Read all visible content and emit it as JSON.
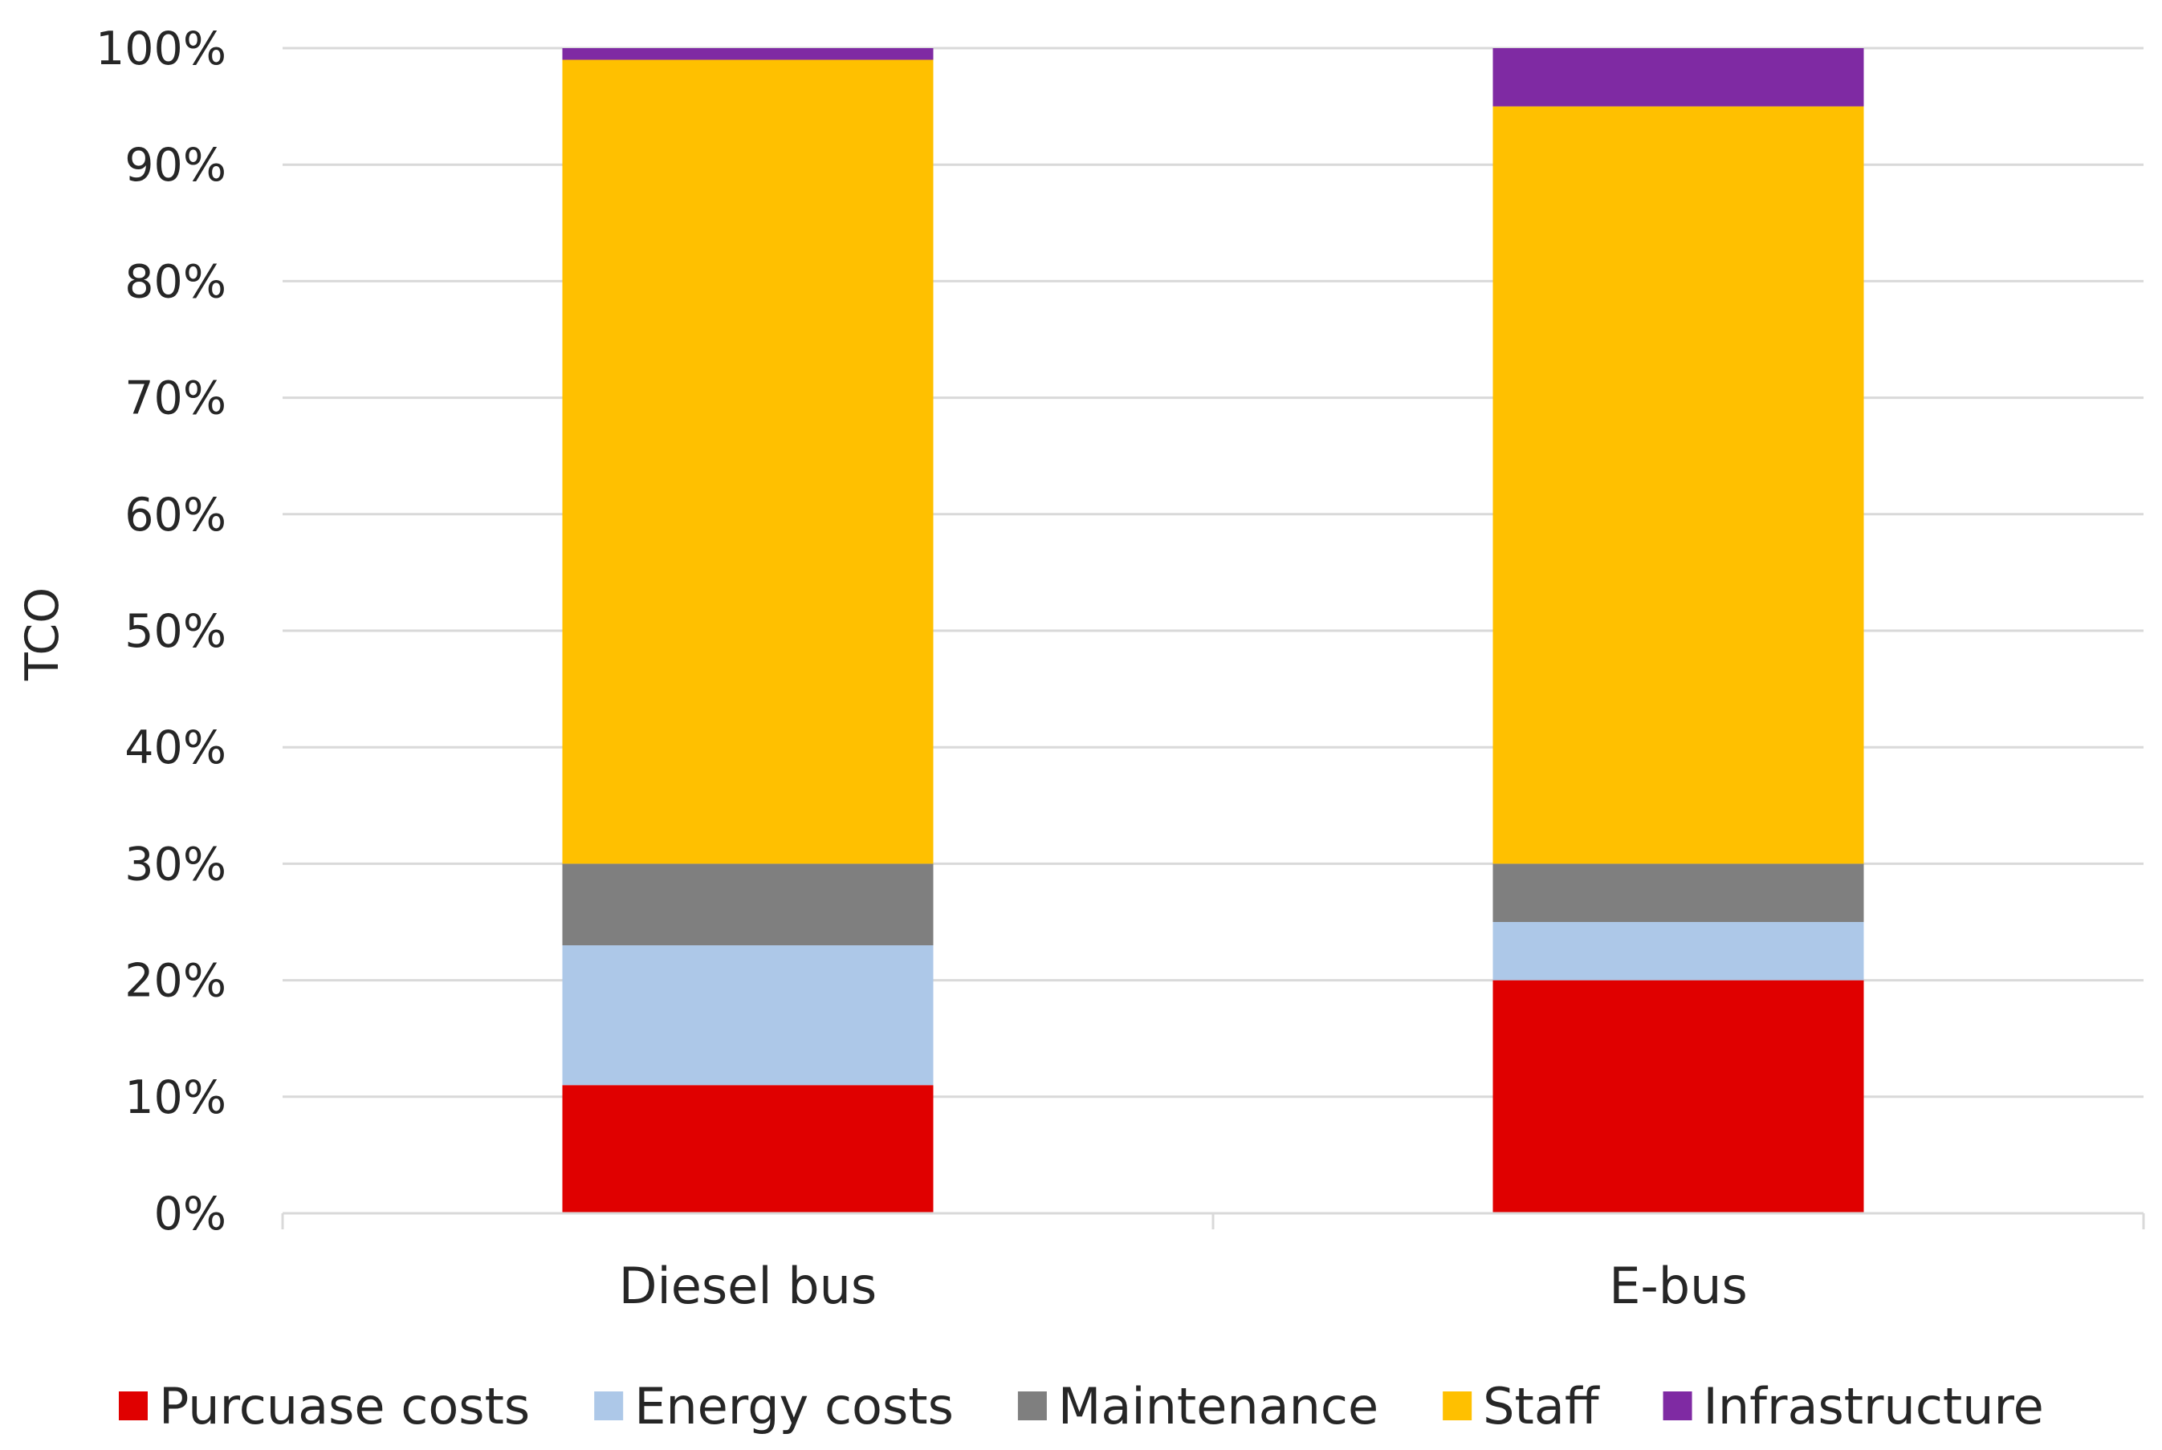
{
  "chart_data": {
    "type": "bar",
    "stacked": true,
    "categories": [
      "Diesel bus",
      "E-bus"
    ],
    "series": [
      {
        "name": "Purcuase costs",
        "color": "#e00000",
        "values": [
          11,
          20
        ]
      },
      {
        "name": "Energy costs",
        "color": "#adc8e8",
        "values": [
          12,
          5
        ]
      },
      {
        "name": "Maintenance",
        "color": "#7f7f7f",
        "values": [
          7,
          5
        ]
      },
      {
        "name": "Staff",
        "color": "#ffc000",
        "values": [
          69,
          65
        ]
      },
      {
        "name": "Infrastructure",
        "color": "#7f2aa3",
        "values": [
          1,
          5
        ]
      }
    ],
    "title": "",
    "xlabel": "",
    "ylabel": "TCO",
    "ylim": [
      0,
      100
    ],
    "yticks": [
      "0%",
      "10%",
      "20%",
      "30%",
      "40%",
      "50%",
      "60%",
      "70%",
      "80%",
      "90%",
      "100%"
    ],
    "grid": true,
    "legend_position": "bottom"
  }
}
